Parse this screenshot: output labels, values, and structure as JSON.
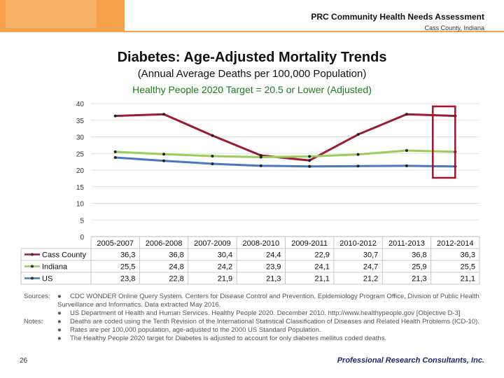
{
  "header": {
    "title": "PRC Community Health Needs Assessment",
    "subtitle": "Cass County, Indiana"
  },
  "chart_data": {
    "type": "line",
    "title": "Diabetes: Age-Adjusted Mortality Trends",
    "subtitle": "(Annual Average Deaths per 100,000 Population)",
    "target_label": "Healthy People 2020 Target = 20.5 or Lower (Adjusted)",
    "categories": [
      "2005-2007",
      "2006-2008",
      "2007-2009",
      "2008-2010",
      "2009-2011",
      "2010-2012",
      "2011-2013",
      "2012-2014"
    ],
    "ylim": [
      0,
      40
    ],
    "yticks": [
      0,
      5,
      10,
      15,
      20,
      25,
      30,
      35,
      40
    ],
    "series": [
      {
        "name": "Cass County",
        "color": "#9b1b30",
        "values": [
          36.3,
          36.8,
          30.4,
          24.4,
          22.9,
          30.7,
          36.8,
          36.3
        ],
        "labels": [
          "36,3",
          "36,8",
          "30,4",
          "24,4",
          "22,9",
          "30,7",
          "36,8",
          "36,3"
        ]
      },
      {
        "name": "Indiana",
        "color": "#9acd5a",
        "values": [
          25.5,
          24.8,
          24.2,
          23.9,
          24.1,
          24.7,
          25.9,
          25.5
        ],
        "labels": [
          "25,5",
          "24,8",
          "24,2",
          "23,9",
          "24,1",
          "24,7",
          "25,9",
          "25,5"
        ]
      },
      {
        "name": "US",
        "color": "#4a78c0",
        "values": [
          23.8,
          22.8,
          21.9,
          21.3,
          21.1,
          21.2,
          21.3,
          21.1
        ],
        "labels": [
          "23,8",
          "22,8",
          "21,9",
          "21,3",
          "21,1",
          "21,2",
          "21,3",
          "21,1"
        ]
      }
    ],
    "highlight_category": "2012-2014",
    "highlight_color": "#b0102a"
  },
  "notes": {
    "sources_label": "Sources:",
    "sources": [
      "CDC WONDER Online Query System. Centers for Disease Control and Prevention, Epidemiology Program Office, Division of Public Health Surveillance and Informatics. Data extracted May 2016.",
      "US Department of Health and Human Services. Healthy People 2020. December 2010. http://www.healthypeople.gov [Objective D-3]"
    ],
    "notes_label": "Notes:",
    "notes_items": [
      "Deaths are coded using the Tenth Revision of the International Statistical Classification of Diseases and Related Health Problems (ICD-10).",
      "Rates are per 100,000 population, age-adjusted to the 2000 US Standard Population.",
      "The Healthy People 2020 target for Diabetes is adjusted to account for only diabetes mellitus coded deaths."
    ],
    "bullet": "●"
  },
  "footer": {
    "page_number": "26",
    "logo_text": "Professional Research Consultants, Inc."
  }
}
